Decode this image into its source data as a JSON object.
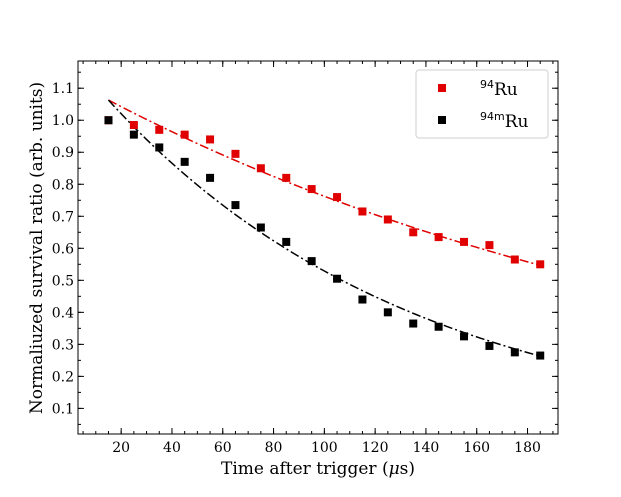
{
  "chart_data": {
    "type": "scatter",
    "xlabel_prefix": "Time after trigger (",
    "xlabel_symbol": "μ",
    "xlabel_suffix": "s)",
    "ylabel": "Normaliuzed survival ratio (arb. units)",
    "xlim": [
      3,
      192
    ],
    "ylim": [
      0.02,
      1.185
    ],
    "x_ticks": [
      20,
      40,
      60,
      80,
      100,
      120,
      140,
      160,
      180
    ],
    "x_ticklabels": [
      "20",
      "40",
      "60",
      "80",
      "100",
      "120",
      "140",
      "160",
      "180"
    ],
    "x_minor_step": 5,
    "y_ticks": [
      0.1,
      0.2,
      0.3,
      0.4,
      0.5,
      0.6,
      0.7,
      0.8,
      0.9,
      1.0,
      1.1
    ],
    "y_ticklabels": [
      "0.1",
      "0.2",
      "0.3",
      "0.4",
      "0.5",
      "0.6",
      "0.7",
      "0.8",
      "0.9",
      "1.0",
      "1.1"
    ],
    "y_minor_step": 0.05,
    "grid": false,
    "legend_position": "top-right",
    "series": [
      {
        "legend_sup": "94",
        "legend_main": "Ru",
        "color": "#e00000",
        "marker": "square",
        "x": [
          15,
          25,
          35,
          45,
          55,
          65,
          75,
          85,
          95,
          105,
          115,
          125,
          135,
          145,
          155,
          165,
          175,
          185
        ],
        "y": [
          1.0,
          0.985,
          0.97,
          0.955,
          0.94,
          0.895,
          0.85,
          0.82,
          0.785,
          0.76,
          0.715,
          0.69,
          0.65,
          0.635,
          0.62,
          0.61,
          0.565,
          0.55
        ],
        "fit": {
          "x_start": 15,
          "x_end": 185,
          "y0": 1.063,
          "tau": 255.8
        }
      },
      {
        "legend_sup": "94m",
        "legend_main": "Ru",
        "color": "#000000",
        "marker": "square",
        "x": [
          15,
          25,
          35,
          45,
          55,
          65,
          75,
          85,
          95,
          105,
          115,
          125,
          135,
          145,
          155,
          165,
          175,
          185
        ],
        "y": [
          1.0,
          0.955,
          0.915,
          0.87,
          0.82,
          0.735,
          0.665,
          0.62,
          0.56,
          0.505,
          0.44,
          0.4,
          0.365,
          0.355,
          0.325,
          0.295,
          0.275,
          0.265
        ],
        "fit": {
          "x_start": 15,
          "x_end": 185,
          "y0": 1.063,
          "tau": 121.8
        }
      }
    ]
  }
}
